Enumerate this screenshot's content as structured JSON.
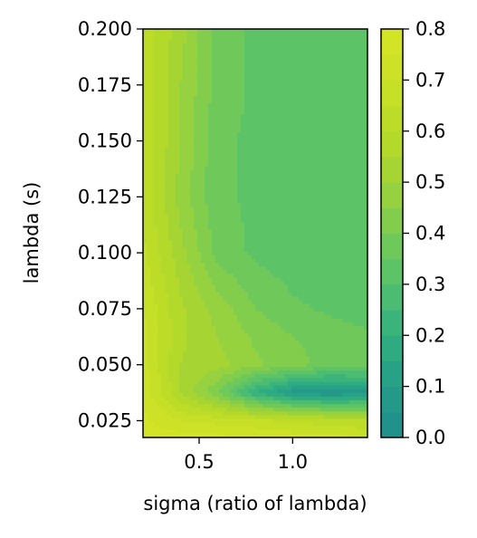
{
  "chart_data": {
    "type": "heatmap",
    "style": "filled-contour",
    "xlabel": "sigma (ratio of lambda)",
    "ylabel": "lambda (s)",
    "xlim": [
      0.2,
      1.4
    ],
    "ylim": [
      0.0175,
      0.2
    ],
    "x_ticks": [
      0.5,
      1.0
    ],
    "x_tick_labels": [
      "0.5",
      "1.0"
    ],
    "y_ticks": [
      0.025,
      0.05,
      0.075,
      0.1,
      0.125,
      0.15,
      0.175,
      0.2
    ],
    "y_tick_labels": [
      "0.025",
      "0.050",
      "0.075",
      "0.100",
      "0.125",
      "0.150",
      "0.175",
      "0.200"
    ],
    "x": [
      0.2,
      0.4,
      0.6,
      0.8,
      1.0,
      1.2,
      1.4
    ],
    "y": [
      0.0175,
      0.025,
      0.0375,
      0.05,
      0.0625,
      0.075,
      0.1,
      0.125,
      0.15,
      0.175,
      0.2
    ],
    "z": [
      [
        0.78,
        0.77,
        0.76,
        0.75,
        0.73,
        0.72,
        0.7
      ],
      [
        0.76,
        0.7,
        0.68,
        0.66,
        0.64,
        0.62,
        0.6
      ],
      [
        0.74,
        0.55,
        0.4,
        0.2,
        0.08,
        0.05,
        0.08
      ],
      [
        0.72,
        0.55,
        0.52,
        0.46,
        0.42,
        0.38,
        0.38
      ],
      [
        0.72,
        0.56,
        0.5,
        0.44,
        0.4,
        0.38,
        0.36
      ],
      [
        0.7,
        0.56,
        0.48,
        0.4,
        0.36,
        0.34,
        0.32
      ],
      [
        0.66,
        0.52,
        0.38,
        0.34,
        0.32,
        0.32,
        0.32
      ],
      [
        0.64,
        0.48,
        0.36,
        0.34,
        0.32,
        0.32,
        0.32
      ],
      [
        0.64,
        0.5,
        0.36,
        0.34,
        0.32,
        0.32,
        0.32
      ],
      [
        0.64,
        0.5,
        0.38,
        0.34,
        0.32,
        0.32,
        0.32
      ],
      [
        0.64,
        0.52,
        0.38,
        0.34,
        0.33,
        0.33,
        0.33
      ]
    ],
    "levels": [
      0.0,
      0.05,
      0.1,
      0.15,
      0.2,
      0.25,
      0.3,
      0.35,
      0.4,
      0.45,
      0.5,
      0.55,
      0.6,
      0.65,
      0.7,
      0.75,
      0.8
    ],
    "colormap": "viridis (upper portion)",
    "colorbar": {
      "range": [
        0.0,
        0.8
      ],
      "ticks": [
        0.0,
        0.1,
        0.2,
        0.3,
        0.4,
        0.5,
        0.6,
        0.7,
        0.8
      ],
      "tick_labels": [
        "0.0",
        "0.1",
        "0.2",
        "0.3",
        "0.4",
        "0.5",
        "0.6",
        "0.7",
        "0.8"
      ],
      "colors": [
        "#21918c",
        "#24998a",
        "#28a287",
        "#2fab82",
        "#3bb47b",
        "#4bbc72",
        "#5cc367",
        "#6ec95a",
        "#82ce4c",
        "#96d23f",
        "#a6d533",
        "#b3d92b",
        "#bddc28",
        "#c6df27",
        "#cde127",
        "#d3e326"
      ]
    },
    "grid": false,
    "legend": "none",
    "title": ""
  }
}
